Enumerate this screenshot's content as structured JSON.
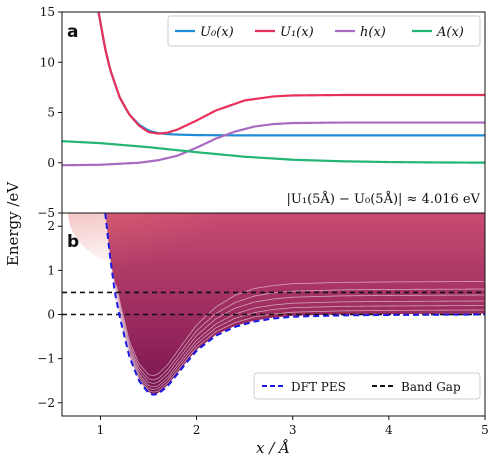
{
  "chart_data": [
    {
      "panel": "a",
      "type": "line",
      "ylabel": "Energy /eV",
      "xlim": [
        0.6,
        5
      ],
      "ylim": [
        -5,
        15
      ],
      "yticks": [
        "−5",
        "0",
        "5",
        "10",
        "15"
      ],
      "legend_position": "top-right",
      "series": [
        {
          "name": "U0(x)",
          "label": "U₀(x)",
          "color": "#1f8dd6",
          "x": [
            0.98,
            1.05,
            1.1,
            1.2,
            1.3,
            1.4,
            1.5,
            1.6,
            1.7,
            1.8,
            2.0,
            2.5,
            3.0,
            4.0,
            5.0
          ],
          "y": [
            15.0,
            11.3,
            9.3,
            6.5,
            4.8,
            3.8,
            3.2,
            2.95,
            2.85,
            2.8,
            2.75,
            2.72,
            2.72,
            2.72,
            2.72
          ]
        },
        {
          "name": "U1(x)",
          "label": "U₁(x)",
          "color": "#e8305a",
          "x": [
            0.98,
            1.05,
            1.1,
            1.2,
            1.3,
            1.4,
            1.5,
            1.6,
            1.7,
            1.8,
            2.0,
            2.2,
            2.5,
            2.8,
            3.0,
            3.5,
            4.0,
            5.0
          ],
          "y": [
            15.0,
            11.3,
            9.3,
            6.5,
            4.8,
            3.7,
            3.05,
            2.9,
            3.0,
            3.3,
            4.2,
            5.2,
            6.2,
            6.6,
            6.7,
            6.74,
            6.74,
            6.74
          ]
        },
        {
          "name": "h(x)",
          "label": "h(x)",
          "color": "#a96bc2",
          "x": [
            0.6,
            1.0,
            1.4,
            1.6,
            1.8,
            2.0,
            2.2,
            2.4,
            2.6,
            2.8,
            3.0,
            3.5,
            4.0,
            5.0
          ],
          "y": [
            -0.25,
            -0.2,
            0.0,
            0.25,
            0.7,
            1.5,
            2.4,
            3.1,
            3.6,
            3.85,
            3.95,
            4.0,
            4.0,
            4.0
          ]
        },
        {
          "name": "A(x)",
          "label": "A(x)",
          "color": "#22b573",
          "x": [
            0.6,
            1.0,
            1.5,
            2.0,
            2.5,
            3.0,
            3.5,
            4.0,
            4.5,
            5.0
          ],
          "y": [
            2.15,
            1.95,
            1.55,
            1.05,
            0.6,
            0.3,
            0.15,
            0.07,
            0.03,
            0.01
          ]
        }
      ],
      "annotation": "|U₁(5Å) − U₀(5Å)| ≈ 4.016 eV"
    },
    {
      "panel": "b",
      "type": "line",
      "xlabel": "x / Å",
      "xlim": [
        0.6,
        5
      ],
      "ylim": [
        -2.3,
        2.3
      ],
      "xticks": [
        "1",
        "2",
        "3",
        "4",
        "5"
      ],
      "yticks": [
        "−2",
        "−1",
        "0",
        "1",
        "2"
      ],
      "legend_position": "bottom-right",
      "series": [
        {
          "name": "DFT PES",
          "color": "#1a1ae6",
          "style": "dashed",
          "x": [
            1.05,
            1.1,
            1.15,
            1.2,
            1.3,
            1.4,
            1.5,
            1.55,
            1.6,
            1.7,
            1.8,
            1.9,
            2.0,
            2.2,
            2.4,
            2.6,
            2.8,
            3.0,
            3.5,
            4.0,
            5.0
          ],
          "y": [
            2.3,
            1.3,
            0.5,
            -0.05,
            -0.95,
            -1.5,
            -1.78,
            -1.82,
            -1.8,
            -1.62,
            -1.35,
            -1.08,
            -0.82,
            -0.48,
            -0.28,
            -0.16,
            -0.09,
            -0.05,
            -0.02,
            -0.01,
            0.0
          ]
        },
        {
          "name": "Band Gap",
          "color": "#111111",
          "style": "dashed",
          "levels": [
            0.0,
            0.5
          ]
        }
      ]
    }
  ]
}
